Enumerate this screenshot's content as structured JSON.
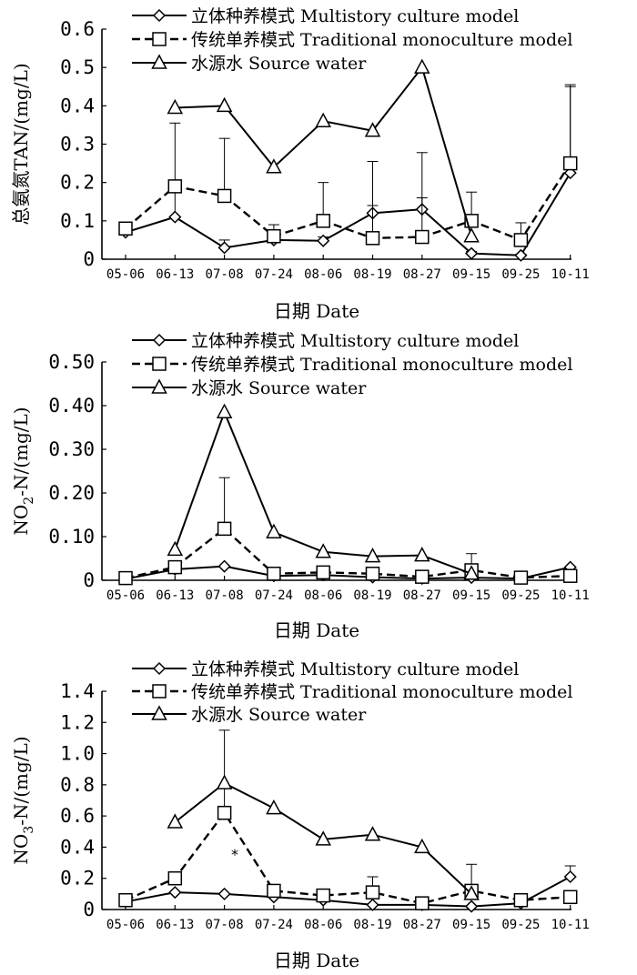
{
  "chart_data": [
    {
      "type": "line",
      "panel": "TAN",
      "ylabel": "总氨氮TAN/(mg/L)",
      "xlabel": "日期 Date",
      "ylim": [
        0,
        0.6
      ],
      "yticks": [
        0,
        0.1,
        0.2,
        0.3,
        0.4,
        0.5,
        0.6
      ],
      "ytick_labels": [
        "0",
        "0.1",
        "0.2",
        "0.3",
        "0.4",
        "0.5",
        "0.6"
      ],
      "categories": [
        "05-06",
        "06-13",
        "07-08",
        "07-24",
        "08-06",
        "08-19",
        "08-27",
        "09-15",
        "09-25",
        "10-11"
      ],
      "legend_position": "top",
      "series": [
        {
          "name": "立体种养模式 Multistory culture model",
          "marker": "diamond",
          "dash": "solid",
          "values": [
            0.07,
            0.11,
            0.03,
            0.05,
            0.048,
            0.12,
            0.13,
            0.015,
            0.01,
            0.225
          ],
          "errors": [
            0.01,
            0.09,
            0.02,
            0.02,
            0.01,
            0.02,
            0.03,
            0.005,
            0.003,
            0.23
          ]
        },
        {
          "name": "传统单养模式 Traditional monoculture model",
          "marker": "square",
          "dash": "dashed",
          "values": [
            0.08,
            0.19,
            0.165,
            0.06,
            0.1,
            0.055,
            0.058,
            0.1,
            0.05,
            0.25
          ],
          "errors": [
            0.01,
            0.165,
            0.15,
            0.03,
            0.1,
            0.2,
            0.22,
            0.075,
            0.045,
            0.2
          ]
        },
        {
          "name": "水源水 Source water",
          "marker": "triangle",
          "dash": "solid",
          "values": [
            null,
            0.395,
            0.4,
            0.24,
            0.36,
            0.335,
            0.5,
            0.06,
            null,
            null
          ],
          "errors": [
            null,
            null,
            null,
            null,
            null,
            null,
            null,
            null,
            null,
            null
          ]
        }
      ]
    },
    {
      "type": "line",
      "panel": "NO2-N",
      "ylabel": "NO2-N/(mg/L)",
      "xlabel": "日期 Date",
      "ylim": [
        0,
        0.5
      ],
      "yticks": [
        0,
        0.1,
        0.2,
        0.3,
        0.4,
        0.5
      ],
      "ytick_labels": [
        "0",
        "0.10",
        "0.20",
        "0.30",
        "0.40",
        "0.50"
      ],
      "categories": [
        "05-06",
        "06-13",
        "07-08",
        "07-24",
        "08-06",
        "08-19",
        "08-27",
        "09-15",
        "09-25",
        "10-11"
      ],
      "legend_position": "top",
      "series": [
        {
          "name": "立体种养模式 Multistory culture model",
          "marker": "diamond",
          "dash": "solid",
          "values": [
            0.003,
            0.025,
            0.032,
            0.01,
            0.012,
            0.007,
            0.004,
            0.006,
            0.004,
            0.03
          ],
          "errors": [
            null,
            null,
            null,
            null,
            null,
            null,
            null,
            null,
            null,
            null
          ]
        },
        {
          "name": "传统单养模式 Traditional monoculture model",
          "marker": "square",
          "dash": "dashed",
          "values": [
            0.005,
            0.03,
            0.118,
            0.015,
            0.018,
            0.015,
            0.008,
            0.023,
            0.006,
            0.01
          ],
          "errors": [
            null,
            null,
            0.117,
            null,
            null,
            null,
            null,
            0.038,
            null,
            null
          ]
        },
        {
          "name": "水源水 Source water",
          "marker": "triangle",
          "dash": "solid",
          "values": [
            null,
            0.07,
            0.385,
            0.11,
            0.065,
            0.055,
            0.057,
            0.015,
            null,
            null
          ],
          "errors": [
            null,
            null,
            null,
            null,
            null,
            null,
            null,
            null,
            null,
            null
          ]
        }
      ]
    },
    {
      "type": "line",
      "panel": "NO3-N",
      "ylabel": "NO3-N/(mg/L)",
      "xlabel": "日期 Date",
      "ylim": [
        0,
        1.4
      ],
      "yticks": [
        0,
        0.2,
        0.4,
        0.6,
        0.8,
        1.0,
        1.2,
        1.4
      ],
      "ytick_labels": [
        "0",
        "0.2",
        "0.4",
        "0.6",
        "0.8",
        "1.0",
        "1.2",
        "1.4"
      ],
      "categories": [
        "05-06",
        "06-13",
        "07-08",
        "07-24",
        "08-06",
        "08-19",
        "08-27",
        "09-15",
        "09-25",
        "10-11"
      ],
      "legend_position": "top",
      "annotation": "*",
      "series": [
        {
          "name": "立体种养模式 Multistory culture model",
          "marker": "diamond",
          "dash": "solid",
          "values": [
            0.05,
            0.11,
            0.1,
            0.08,
            0.06,
            0.03,
            0.03,
            0.02,
            0.04,
            0.21
          ],
          "errors": [
            null,
            null,
            null,
            null,
            null,
            null,
            null,
            null,
            null,
            0.07
          ]
        },
        {
          "name": "传统单养模式 Traditional monoculture model",
          "marker": "square",
          "dash": "dashed",
          "values": [
            0.06,
            0.2,
            0.62,
            0.12,
            0.09,
            0.11,
            0.04,
            0.12,
            0.06,
            0.08
          ],
          "errors": [
            null,
            null,
            0.53,
            null,
            null,
            0.1,
            null,
            0.17,
            null,
            null
          ]
        },
        {
          "name": "水源水 Source water",
          "marker": "triangle",
          "dash": "solid",
          "values": [
            null,
            0.56,
            0.81,
            0.65,
            0.45,
            0.48,
            0.4,
            0.1,
            null,
            null
          ],
          "errors": [
            null,
            null,
            null,
            null,
            null,
            null,
            null,
            null,
            null,
            null
          ]
        }
      ]
    }
  ]
}
